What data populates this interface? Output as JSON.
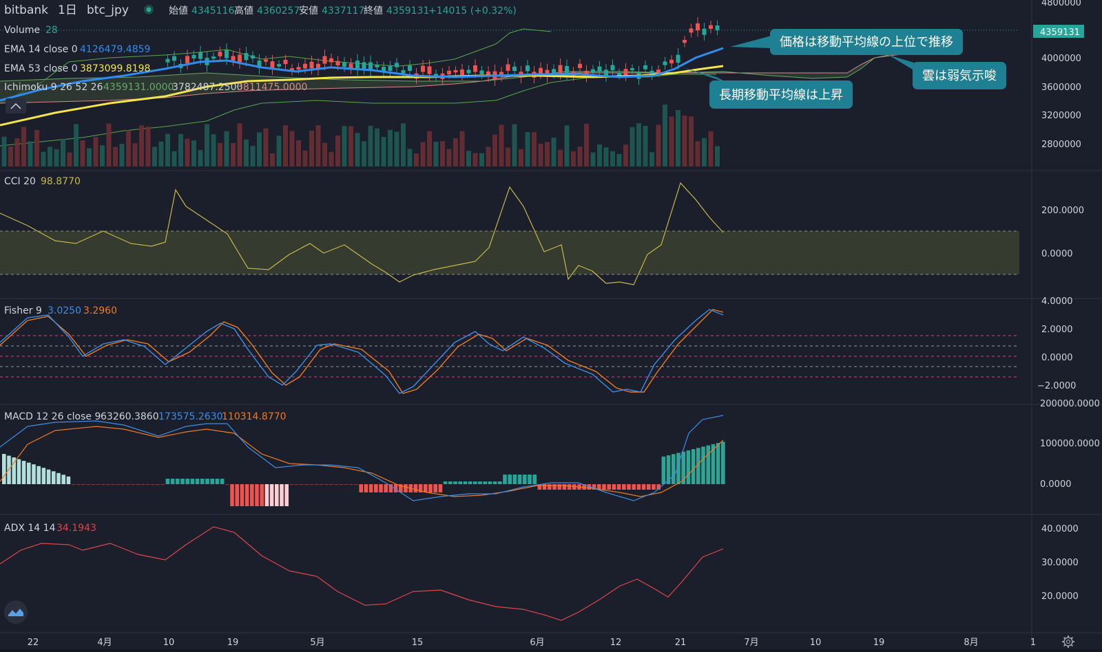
{
  "header": {
    "exchange": "bitbank",
    "interval": "1日",
    "symbol": "btc_jpy",
    "open_label": "始値",
    "open": "4345116",
    "high_label": "高値",
    "high": "4360257",
    "low_label": "安値",
    "low": "4337117",
    "close_label": "終値",
    "close": "4359131",
    "change": "+14015 (+0.32%)"
  },
  "legend": {
    "volume": {
      "label": "Volume",
      "value": "28"
    },
    "ema14": {
      "label": "EMA 14 close 0",
      "value": "4126479.4859"
    },
    "ema53": {
      "label": "EMA 53 close 0",
      "value": "3873099.8198"
    },
    "ichimoku": {
      "label": "Ichimoku 9 26 52 26",
      "v1": "4359131.0000",
      "v2": "3782487.2500",
      "v3": "3811475.0000"
    },
    "cci": {
      "label": "CCI 20",
      "value": "98.8770"
    },
    "fisher": {
      "label": "Fisher 9",
      "v1": "3.0250",
      "v2": "3.2960"
    },
    "macd": {
      "label": "MACD 12 26 close 9",
      "v1": "63260.3860",
      "v2": "173575.2630",
      "v3": "110314.8770"
    },
    "adx": {
      "label": "ADX 14 14",
      "value": "34.1943"
    }
  },
  "price_axis": {
    "current": "4359131",
    "top_partial": "4800000",
    "ticks": [
      "4000000",
      "3600000",
      "3200000",
      "2800000"
    ]
  },
  "cci_axis": [
    "200.0000",
    "0.0000"
  ],
  "fisher_axis": [
    "4.0000",
    "2.0000",
    "0.0000",
    "−2.0000"
  ],
  "macd_axis": [
    "200000.0000",
    "100000.0000",
    "0.0000"
  ],
  "adx_axis": [
    "40.0000",
    "30.0000",
    "20.0000"
  ],
  "time_axis": [
    "22",
    "4月",
    "10",
    "19",
    "5月",
    "15",
    "6月",
    "12",
    "21",
    "7月",
    "10",
    "19",
    "8月",
    "1"
  ],
  "annotations": {
    "a1": "価格は移動平均線の上位で推移",
    "a2": "雲は弱気示唆",
    "a3": "長期移動平均線は上昇"
  },
  "colors": {
    "background": "#1b1f2b",
    "up": "#26a69a",
    "down": "#ef5350",
    "ema14": "#2f8cf0",
    "ema53": "#f4e64a",
    "cci": "#c8b84a",
    "fisher_a": "#3d8ee6",
    "fisher_b": "#f07b1f",
    "adx": "#e0454b",
    "callout": "#1f7f93"
  },
  "icons": {
    "collapse": "chevron-up-icon",
    "logo": "tradingview-logo-icon",
    "settings": "gear-icon"
  }
}
